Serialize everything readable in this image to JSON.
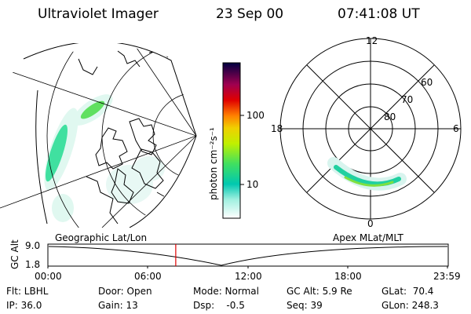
{
  "header": {
    "instrument": "Ultraviolet Imager",
    "date": "23 Sep 00",
    "time": "07:41:08 UT"
  },
  "colorbar": {
    "unit_label": "photon cm⁻²s⁻¹",
    "ticks": [
      "100",
      "10"
    ],
    "colors": [
      "#ffffff",
      "#00c8c8",
      "#00e080",
      "#80f040",
      "#f0f000",
      "#ff8000",
      "#e00000",
      "#a00060",
      "#000040"
    ]
  },
  "polar": {
    "mlt_labels": {
      "top": "12",
      "left": "18",
      "right": "6",
      "bottom": "0"
    },
    "lat_labels": [
      "60",
      "70",
      "80"
    ]
  },
  "timeline": {
    "left_label": "Geographic Lat/Lon",
    "right_label": "Apex MLat/MLT",
    "axis_title": "GC Alt",
    "y_top": "9.0",
    "y_bottom": "1.8",
    "x_ticks": [
      "00:00",
      "06:00",
      "12:00",
      "18:00",
      "23:59"
    ],
    "current_time_fraction": 0.32
  },
  "info": {
    "filter": "Flt: LBHL",
    "ip": "IP: 36.0",
    "door": "Door: Open",
    "gain": "Gain: 13",
    "mode": "Mode: Normal",
    "dsp": "Dsp:    -0.5",
    "gc_alt": "GC Alt: 5.9 Re",
    "seq": "Seq: 39",
    "glat": "GLat:  70.4",
    "glon": "GLon: 248.3"
  }
}
